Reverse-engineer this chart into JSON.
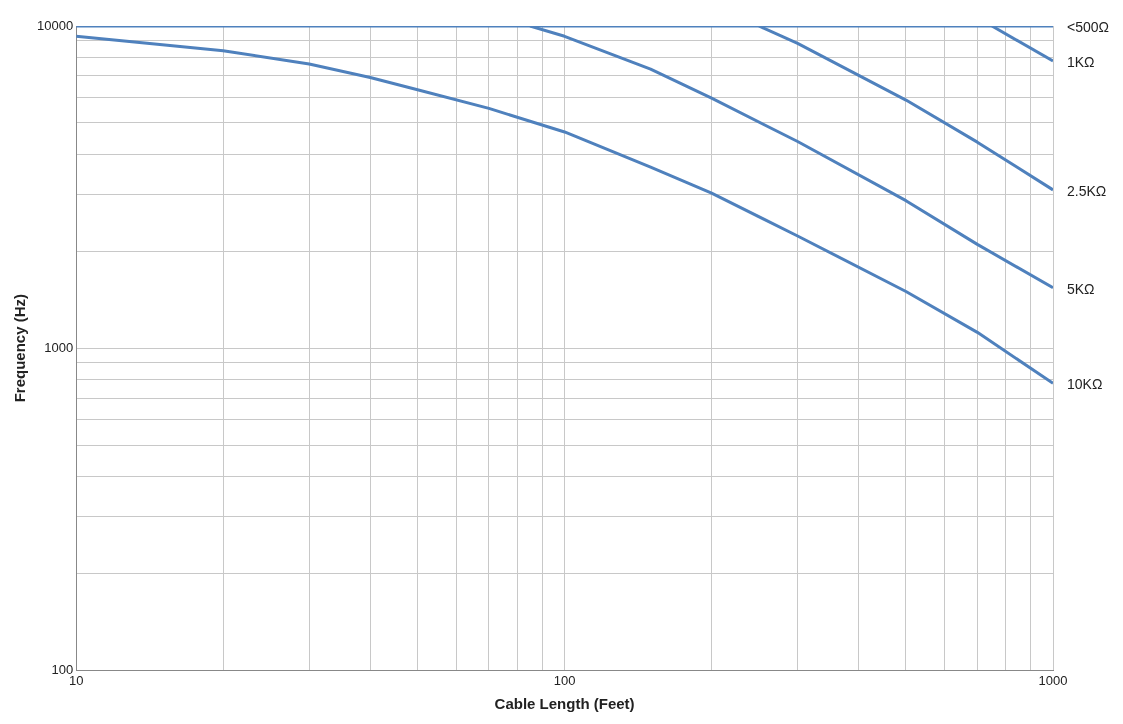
{
  "chart_data": {
    "type": "line",
    "xlabel": "Cable Length (Feet)",
    "ylabel": "Frequency (Hz)",
    "log": "xy",
    "grid": true,
    "legend": false,
    "marker": "none",
    "xlim": [
      10,
      1000
    ],
    "ylim": [
      100,
      10000
    ],
    "xticks": [
      10,
      {
        "value": 20,
        "label": null
      },
      {
        "value": 30,
        "label": null
      },
      {
        "value": 40,
        "label": null
      },
      {
        "value": 50,
        "label": null
      },
      {
        "value": 60,
        "label": null
      },
      {
        "value": 70,
        "label": null
      },
      {
        "value": 80,
        "label": null
      },
      {
        "value": 90,
        "label": null
      },
      100,
      {
        "value": 200,
        "label": null
      },
      {
        "value": 300,
        "label": null
      },
      {
        "value": 400,
        "label": null
      },
      {
        "value": 500,
        "label": null
      },
      {
        "value": 600,
        "label": null
      },
      {
        "value": 700,
        "label": null
      },
      {
        "value": 800,
        "label": null
      },
      {
        "value": 900,
        "label": null
      },
      1000
    ],
    "yticks": [
      100,
      {
        "value": 200,
        "label": null
      },
      {
        "value": 300,
        "label": null
      },
      {
        "value": 400,
        "label": null
      },
      {
        "value": 500,
        "label": null
      },
      {
        "value": 600,
        "label": null
      },
      {
        "value": 700,
        "label": null
      },
      {
        "value": 800,
        "label": null
      },
      {
        "value": 900,
        "label": null
      },
      1000,
      {
        "value": 2000,
        "label": null
      },
      {
        "value": 3000,
        "label": null
      },
      {
        "value": 4000,
        "label": null
      },
      {
        "value": 5000,
        "label": null
      },
      {
        "value": 6000,
        "label": null
      },
      {
        "value": 7000,
        "label": null
      },
      {
        "value": 8000,
        "label": null
      },
      {
        "value": 9000,
        "label": null
      },
      10000
    ],
    "series": [
      {
        "name": "<500Ω",
        "color": "#4f81bd",
        "x": [
          10,
          1000
        ],
        "values": [
          10000,
          10000
        ]
      },
      {
        "name": "1KΩ",
        "color": "#4f81bd",
        "x": [
          750,
          1000
        ],
        "values": [
          10000,
          7790
        ]
      },
      {
        "name": "2.5KΩ",
        "color": "#4f81bd",
        "x": [
          250,
          300,
          500,
          700,
          1000
        ],
        "values": [
          10000,
          8830,
          5890,
          4360,
          3100
        ]
      },
      {
        "name": "5KΩ",
        "color": "#4f81bd",
        "x": [
          85,
          100,
          150,
          200,
          300,
          500,
          700,
          1000
        ],
        "values": [
          10000,
          9290,
          7350,
          5970,
          4380,
          2870,
          2100,
          1540
        ]
      },
      {
        "name": "10KΩ",
        "color": "#4f81bd",
        "x": [
          10,
          20,
          30,
          40,
          50,
          70,
          100,
          150,
          200,
          300,
          500,
          700,
          1000
        ],
        "values": [
          9290,
          8380,
          7620,
          6920,
          6340,
          5550,
          4690,
          3650,
          3030,
          2230,
          1500,
          1120,
          778
        ]
      }
    ]
  }
}
